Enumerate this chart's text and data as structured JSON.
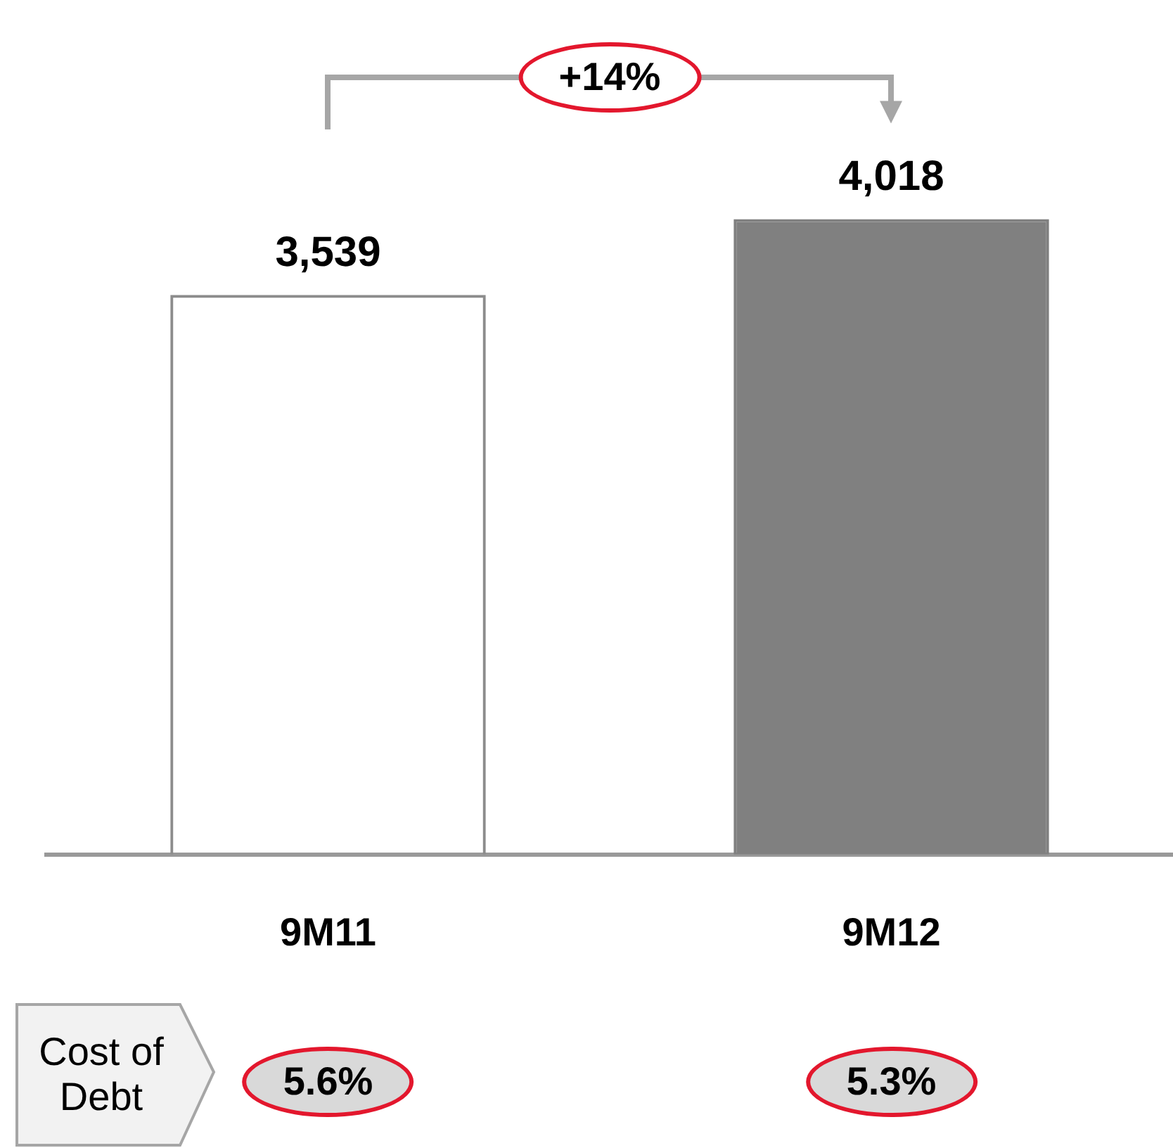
{
  "chart_data": {
    "type": "bar",
    "categories": [
      "9M11",
      "9M12"
    ],
    "values": [
      3539,
      4018
    ],
    "colors": [
      "#8c8c8c",
      "#808080"
    ],
    "value_labels": [
      "3,539",
      "4,018"
    ],
    "annotations": [
      "+14%",
      "Cost of Debt",
      "5.6%",
      "5.3%"
    ],
    "grid": false,
    "legend": false,
    "tick_labels": "x"
  }
}
